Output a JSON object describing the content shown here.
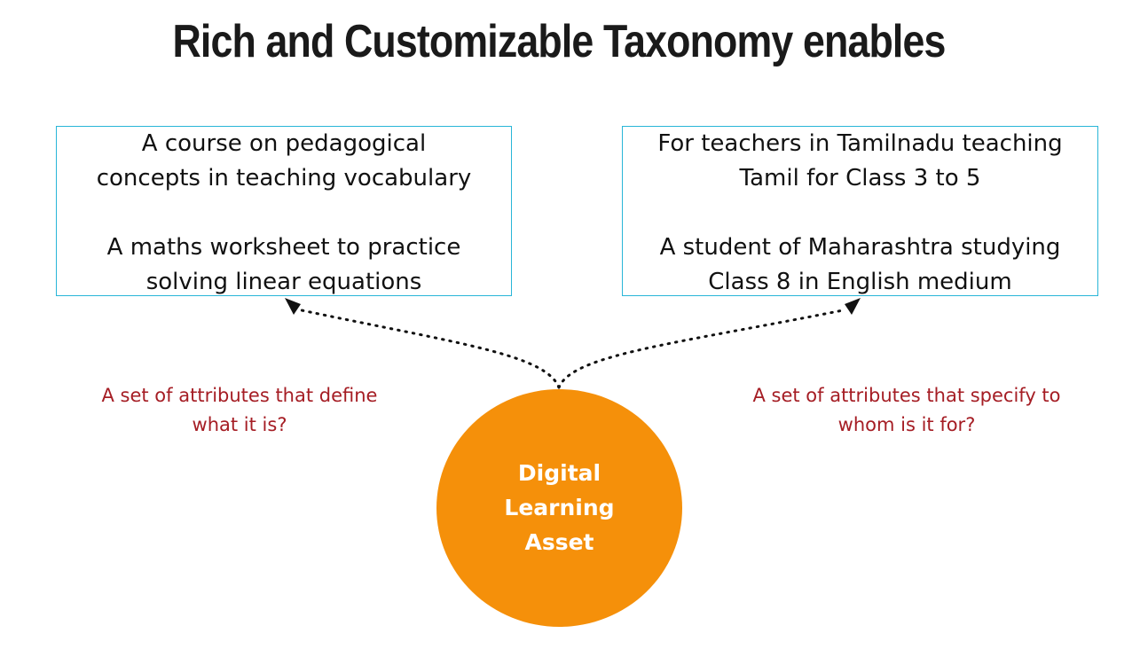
{
  "title": "Rich and Customizable Taxonomy enables",
  "left_box": {
    "line1": "A course on pedagogical",
    "line2": "concepts in teaching vocabulary",
    "line3": "A maths worksheet to practice",
    "line4": "solving linear equations"
  },
  "right_box": {
    "line1": "For teachers in Tamilnadu teaching",
    "line2": "Tamil for Class 3 to 5",
    "line3": "A student of Maharashtra studying",
    "line4": "Class 8 in English medium"
  },
  "left_caption": {
    "line1": "A set of attributes that define",
    "line2": "what it is?"
  },
  "right_caption": {
    "line1": "A set of attributes that specify to",
    "line2": "whom is it for?"
  },
  "center_node": {
    "line1": "Digital",
    "line2": "Learning",
    "line3": "Asset"
  },
  "colors": {
    "box_border": "#29b6d8",
    "caption_text": "#a51d24",
    "node_fill": "#f5900a",
    "node_text": "#ffffff"
  }
}
